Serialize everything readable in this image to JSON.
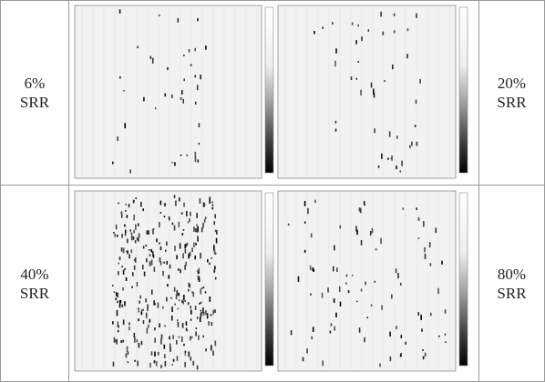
{
  "table": {
    "rows": [
      {
        "left": "6% SRR",
        "right": "20% SRR"
      },
      {
        "left": "40% SRR",
        "right": "80% SRR"
      }
    ]
  }
}
